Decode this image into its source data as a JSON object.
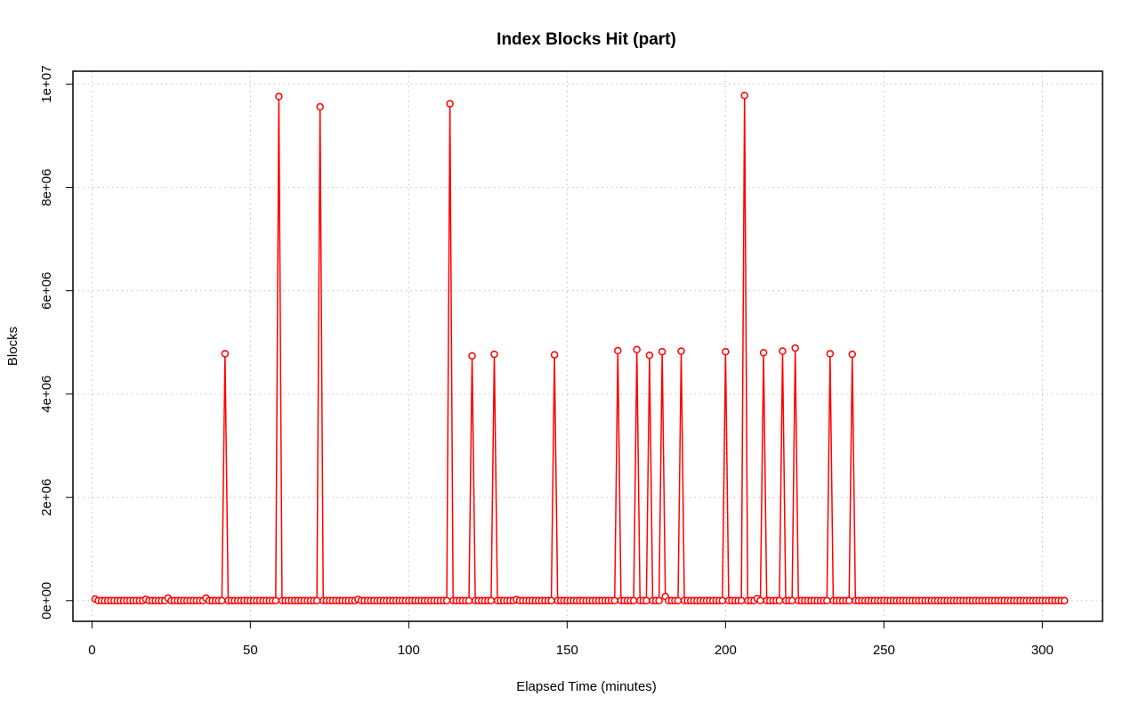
{
  "chart_data": {
    "type": "line",
    "title": "Index Blocks Hit (part)",
    "xlabel": "Elapsed Time (minutes)",
    "ylabel": "Blocks",
    "xlim": [
      -6,
      319
    ],
    "ylim": [
      -400000,
      10250000
    ],
    "xticks": [
      0,
      50,
      100,
      150,
      200,
      250,
      300
    ],
    "xtick_labels": [
      "0",
      "50",
      "100",
      "150",
      "200",
      "250",
      "300"
    ],
    "yticks": [
      0,
      2000000,
      4000000,
      6000000,
      8000000,
      10000000
    ],
    "ytick_labels": [
      "0e+00",
      "2e+06",
      "4e+06",
      "6e+06",
      "8e+06",
      "1e+07"
    ],
    "grid": true,
    "markers": "open circles",
    "x_range": [
      1,
      307
    ],
    "baseline": 0,
    "baseline_overrides": [
      {
        "x": 1,
        "y": 30000
      },
      {
        "x": 17,
        "y": 25000
      },
      {
        "x": 24,
        "y": 50000
      },
      {
        "x": 36,
        "y": 50000
      },
      {
        "x": 84,
        "y": 25000
      },
      {
        "x": 134,
        "y": 20000
      },
      {
        "x": 181,
        "y": 80000
      },
      {
        "x": 210,
        "y": 40000
      }
    ],
    "peaks": [
      {
        "x": 42,
        "y": 4780000
      },
      {
        "x": 59,
        "y": 9760000
      },
      {
        "x": 72,
        "y": 9560000
      },
      {
        "x": 113,
        "y": 9620000
      },
      {
        "x": 120,
        "y": 4740000
      },
      {
        "x": 127,
        "y": 4770000
      },
      {
        "x": 146,
        "y": 4760000
      },
      {
        "x": 166,
        "y": 4840000
      },
      {
        "x": 172,
        "y": 4860000
      },
      {
        "x": 176,
        "y": 4750000
      },
      {
        "x": 180,
        "y": 4820000
      },
      {
        "x": 186,
        "y": 4830000
      },
      {
        "x": 200,
        "y": 4820000
      },
      {
        "x": 206,
        "y": 9780000
      },
      {
        "x": 212,
        "y": 4800000
      },
      {
        "x": 218,
        "y": 4830000
      },
      {
        "x": 222,
        "y": 4890000
      },
      {
        "x": 233,
        "y": 4780000
      },
      {
        "x": 240,
        "y": 4770000
      }
    ],
    "colors": {
      "series": "#ff0000",
      "grid": "#c8c8c8",
      "axis": "#000000"
    }
  }
}
